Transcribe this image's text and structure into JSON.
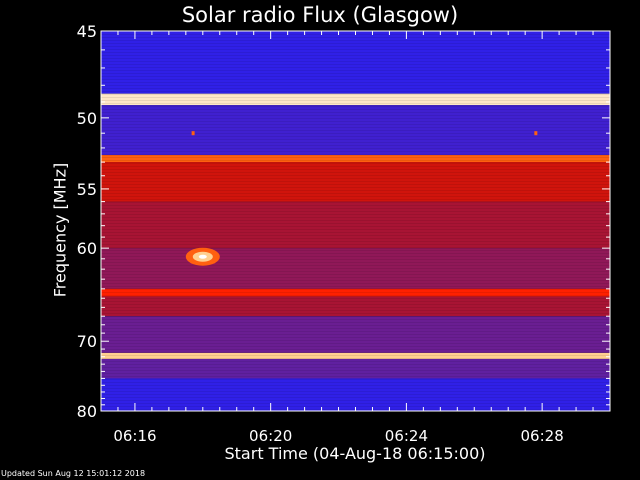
{
  "chart_data": {
    "type": "heatmap",
    "title": "Solar radio Flux (Glasgow)",
    "xlabel": "Start Time (04-Aug-18 06:15:00)",
    "ylabel": "Frequency [MHz]",
    "x_ticks": [
      "06:16",
      "06:20",
      "06:24",
      "06:28"
    ],
    "x_tick_minutes": [
      1,
      5,
      9,
      13
    ],
    "xlim_minutes": [
      0,
      15
    ],
    "y_ticks": [
      45,
      50,
      55,
      60,
      70,
      80
    ],
    "ylim_mhz": [
      45,
      80
    ],
    "y_scale": "reciprocal",
    "colormap": [
      "#2020ff",
      "#6020a0",
      "#c01010",
      "#ff2000",
      "#ffa020",
      "#ffffff"
    ],
    "bands": [
      {
        "from_mhz": 45,
        "to_mhz": 48.5,
        "level": 0.05
      },
      {
        "from_mhz": 48.5,
        "to_mhz": 49.2,
        "level": 0.95
      },
      {
        "from_mhz": 49.2,
        "to_mhz": 52.5,
        "level": 0.1
      },
      {
        "from_mhz": 52.5,
        "to_mhz": 53.0,
        "level": 0.7
      },
      {
        "from_mhz": 53.0,
        "to_mhz": 56,
        "level": 0.45
      },
      {
        "from_mhz": 56,
        "to_mhz": 60,
        "level": 0.35
      },
      {
        "from_mhz": 60,
        "to_mhz": 64,
        "level": 0.3
      },
      {
        "from_mhz": 64,
        "to_mhz": 64.8,
        "level": 0.6
      },
      {
        "from_mhz": 64.8,
        "to_mhz": 67,
        "level": 0.35
      },
      {
        "from_mhz": 67,
        "to_mhz": 71.5,
        "level": 0.22
      },
      {
        "from_mhz": 71.5,
        "to_mhz": 72.3,
        "level": 0.9
      },
      {
        "from_mhz": 72.3,
        "to_mhz": 75,
        "level": 0.2
      },
      {
        "from_mhz": 75,
        "to_mhz": 80,
        "level": 0.05
      }
    ],
    "bursts": [
      {
        "minute": 3.0,
        "freq_mhz": 60.8,
        "level": 1.0
      },
      {
        "minute": 2.7,
        "freq_mhz": 51.0,
        "level": 0.7
      },
      {
        "minute": 12.8,
        "freq_mhz": 51.0,
        "level": 0.7
      }
    ]
  },
  "footer": {
    "updated": "Updated Sun Aug 12 15:01:12 2018"
  }
}
